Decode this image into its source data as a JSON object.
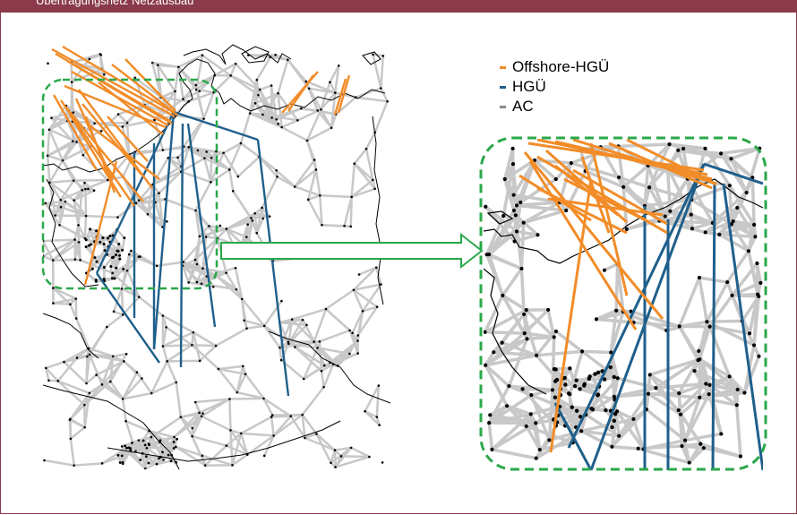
{
  "header": {
    "title": "Übertragungsnetz Netzausbau"
  },
  "legend": [
    {
      "label": "Offshore-HGÜ",
      "color": "#f28c28"
    },
    {
      "label": "HGÜ",
      "color": "#1f5f8b"
    },
    {
      "label": "AC",
      "color": "#8c8c8c"
    }
  ],
  "colors": {
    "offshore": "#f28c28",
    "hvdc": "#1f5f8b",
    "ac": "#c8c8c8",
    "border": "#000000",
    "highlight": "#2aa84a",
    "title_bar": "#8a3a4a"
  },
  "map": {
    "highlight_box": "dashed-green",
    "zoom_arrow": "right"
  }
}
